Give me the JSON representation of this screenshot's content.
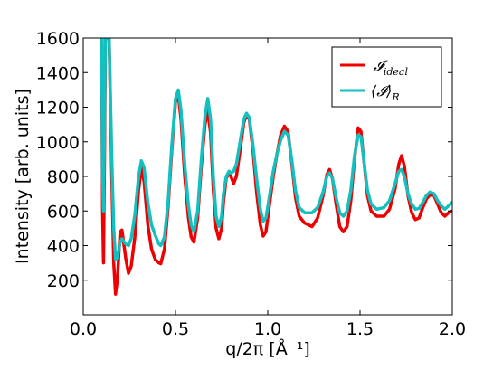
{
  "chart_data": {
    "type": "line",
    "xlabel": "q/2π [Å⁻¹]",
    "ylabel": "Intensity [arb. units]",
    "xlim": [
      0.0,
      2.0
    ],
    "ylim": [
      0,
      1600
    ],
    "x_ticks": [
      "0.0",
      "0.5",
      "1.0",
      "1.5",
      "2.0"
    ],
    "y_ticks": [
      "200",
      "400",
      "600",
      "800",
      "1000",
      "1200",
      "1400",
      "1600"
    ],
    "grid": false,
    "legend_position": "top-right",
    "series": [
      {
        "name": "𝓘ideal",
        "name_main": "𝓘",
        "name_sub": "ideal",
        "color": "#ee0000",
        "points": [
          [
            0.1,
            1600
          ],
          [
            0.105,
            600
          ],
          [
            0.11,
            300
          ],
          [
            0.115,
            900
          ],
          [
            0.12,
            1600
          ],
          [
            0.13,
            1600
          ],
          [
            0.14,
            1600
          ],
          [
            0.155,
            800
          ],
          [
            0.165,
            300
          ],
          [
            0.175,
            120
          ],
          [
            0.185,
            200
          ],
          [
            0.2,
            480
          ],
          [
            0.21,
            490
          ],
          [
            0.23,
            330
          ],
          [
            0.245,
            240
          ],
          [
            0.26,
            280
          ],
          [
            0.28,
            450
          ],
          [
            0.3,
            720
          ],
          [
            0.315,
            850
          ],
          [
            0.33,
            770
          ],
          [
            0.35,
            520
          ],
          [
            0.37,
            380
          ],
          [
            0.39,
            320
          ],
          [
            0.41,
            300
          ],
          [
            0.42,
            295
          ],
          [
            0.44,
            380
          ],
          [
            0.46,
            620
          ],
          [
            0.48,
            950
          ],
          [
            0.5,
            1230
          ],
          [
            0.515,
            1270
          ],
          [
            0.53,
            1130
          ],
          [
            0.55,
            800
          ],
          [
            0.57,
            560
          ],
          [
            0.585,
            450
          ],
          [
            0.6,
            420
          ],
          [
            0.62,
            560
          ],
          [
            0.64,
            860
          ],
          [
            0.66,
            1100
          ],
          [
            0.675,
            1180
          ],
          [
            0.69,
            1050
          ],
          [
            0.705,
            720
          ],
          [
            0.72,
            500
          ],
          [
            0.735,
            440
          ],
          [
            0.75,
            500
          ],
          [
            0.76,
            650
          ],
          [
            0.775,
            790
          ],
          [
            0.79,
            820
          ],
          [
            0.8,
            800
          ],
          [
            0.815,
            760
          ],
          [
            0.83,
            800
          ],
          [
            0.85,
            950
          ],
          [
            0.87,
            1110
          ],
          [
            0.885,
            1155
          ],
          [
            0.9,
            1130
          ],
          [
            0.92,
            950
          ],
          [
            0.94,
            700
          ],
          [
            0.96,
            520
          ],
          [
            0.975,
            455
          ],
          [
            0.99,
            480
          ],
          [
            1.01,
            640
          ],
          [
            1.03,
            800
          ],
          [
            1.05,
            930
          ],
          [
            1.07,
            1040
          ],
          [
            1.09,
            1090
          ],
          [
            1.11,
            1060
          ],
          [
            1.13,
            880
          ],
          [
            1.15,
            680
          ],
          [
            1.17,
            570
          ],
          [
            1.2,
            530
          ],
          [
            1.24,
            510
          ],
          [
            1.27,
            560
          ],
          [
            1.3,
            690
          ],
          [
            1.32,
            810
          ],
          [
            1.335,
            840
          ],
          [
            1.35,
            790
          ],
          [
            1.37,
            640
          ],
          [
            1.39,
            510
          ],
          [
            1.41,
            480
          ],
          [
            1.43,
            510
          ],
          [
            1.45,
            660
          ],
          [
            1.47,
            900
          ],
          [
            1.49,
            1080
          ],
          [
            1.505,
            1060
          ],
          [
            1.52,
            900
          ],
          [
            1.54,
            690
          ],
          [
            1.56,
            600
          ],
          [
            1.59,
            570
          ],
          [
            1.63,
            570
          ],
          [
            1.66,
            610
          ],
          [
            1.69,
            730
          ],
          [
            1.71,
            870
          ],
          [
            1.725,
            920
          ],
          [
            1.74,
            860
          ],
          [
            1.76,
            690
          ],
          [
            1.78,
            590
          ],
          [
            1.8,
            550
          ],
          [
            1.82,
            560
          ],
          [
            1.84,
            620
          ],
          [
            1.86,
            670
          ],
          [
            1.88,
            695
          ],
          [
            1.9,
            690
          ],
          [
            1.92,
            640
          ],
          [
            1.94,
            590
          ],
          [
            1.96,
            570
          ],
          [
            1.98,
            590
          ],
          [
            2.0,
            600
          ]
        ]
      },
      {
        "name": "⟨𝓘⟩R",
        "name_main": "⟨𝓘⟩",
        "name_sub": "R",
        "color": "#13bfbf",
        "points": [
          [
            0.1,
            1600
          ],
          [
            0.105,
            800
          ],
          [
            0.11,
            600
          ],
          [
            0.115,
            1100
          ],
          [
            0.12,
            1600
          ],
          [
            0.13,
            1600
          ],
          [
            0.14,
            1600
          ],
          [
            0.155,
            900
          ],
          [
            0.165,
            500
          ],
          [
            0.175,
            320
          ],
          [
            0.185,
            330
          ],
          [
            0.2,
            420
          ],
          [
            0.21,
            440
          ],
          [
            0.23,
            410
          ],
          [
            0.245,
            400
          ],
          [
            0.26,
            440
          ],
          [
            0.28,
            580
          ],
          [
            0.3,
            800
          ],
          [
            0.315,
            890
          ],
          [
            0.33,
            850
          ],
          [
            0.35,
            650
          ],
          [
            0.37,
            520
          ],
          [
            0.39,
            460
          ],
          [
            0.41,
            410
          ],
          [
            0.42,
            400
          ],
          [
            0.44,
            450
          ],
          [
            0.46,
            650
          ],
          [
            0.48,
            980
          ],
          [
            0.5,
            1250
          ],
          [
            0.515,
            1300
          ],
          [
            0.53,
            1180
          ],
          [
            0.55,
            870
          ],
          [
            0.57,
            630
          ],
          [
            0.585,
            520
          ],
          [
            0.6,
            480
          ],
          [
            0.62,
            600
          ],
          [
            0.64,
            900
          ],
          [
            0.66,
            1150
          ],
          [
            0.675,
            1250
          ],
          [
            0.69,
            1130
          ],
          [
            0.705,
            800
          ],
          [
            0.72,
            570
          ],
          [
            0.735,
            510
          ],
          [
            0.75,
            570
          ],
          [
            0.76,
            700
          ],
          [
            0.775,
            800
          ],
          [
            0.79,
            830
          ],
          [
            0.8,
            820
          ],
          [
            0.815,
            830
          ],
          [
            0.83,
            870
          ],
          [
            0.85,
            1000
          ],
          [
            0.87,
            1130
          ],
          [
            0.885,
            1165
          ],
          [
            0.9,
            1140
          ],
          [
            0.92,
            980
          ],
          [
            0.94,
            780
          ],
          [
            0.96,
            610
          ],
          [
            0.975,
            540
          ],
          [
            0.99,
            560
          ],
          [
            1.01,
            690
          ],
          [
            1.03,
            830
          ],
          [
            1.05,
            930
          ],
          [
            1.07,
            1010
          ],
          [
            1.09,
            1060
          ],
          [
            1.11,
            1040
          ],
          [
            1.13,
            900
          ],
          [
            1.15,
            720
          ],
          [
            1.17,
            620
          ],
          [
            1.2,
            590
          ],
          [
            1.24,
            590
          ],
          [
            1.27,
            620
          ],
          [
            1.3,
            710
          ],
          [
            1.32,
            800
          ],
          [
            1.335,
            820
          ],
          [
            1.35,
            790
          ],
          [
            1.37,
            680
          ],
          [
            1.39,
            590
          ],
          [
            1.41,
            570
          ],
          [
            1.43,
            600
          ],
          [
            1.45,
            720
          ],
          [
            1.47,
            920
          ],
          [
            1.49,
            1040
          ],
          [
            1.505,
            1030
          ],
          [
            1.52,
            900
          ],
          [
            1.54,
            720
          ],
          [
            1.56,
            640
          ],
          [
            1.59,
            610
          ],
          [
            1.63,
            620
          ],
          [
            1.66,
            660
          ],
          [
            1.69,
            760
          ],
          [
            1.71,
            830
          ],
          [
            1.725,
            840
          ],
          [
            1.74,
            800
          ],
          [
            1.76,
            700
          ],
          [
            1.78,
            640
          ],
          [
            1.8,
            610
          ],
          [
            1.82,
            615
          ],
          [
            1.84,
            650
          ],
          [
            1.86,
            690
          ],
          [
            1.88,
            710
          ],
          [
            1.9,
            700
          ],
          [
            1.92,
            660
          ],
          [
            1.94,
            630
          ],
          [
            1.96,
            610
          ],
          [
            1.98,
            630
          ],
          [
            2.0,
            650
          ]
        ]
      }
    ]
  }
}
